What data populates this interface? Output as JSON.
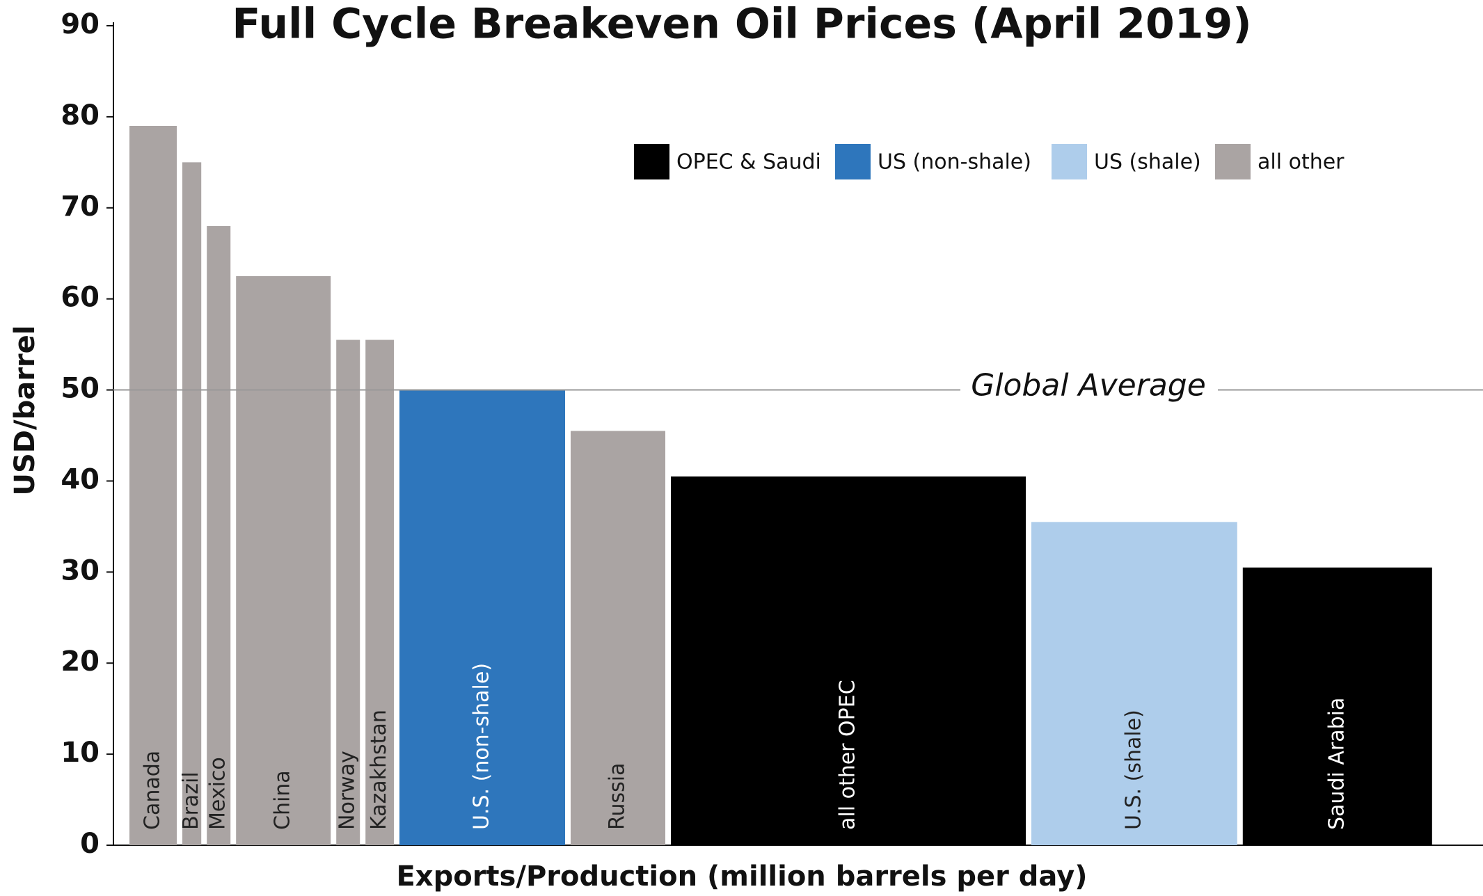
{
  "chart_data": {
    "type": "variable-width-bar",
    "title": "Full Cycle Breakeven Oil Prices (April 2019)",
    "ylabel": "USD/barrel",
    "xlabel": "Exports/Production (million barrels per day)",
    "categories": [
      "Canada",
      "Brazil",
      "Mexico",
      "China",
      "Norway",
      "Kazakhstan",
      "U.S. (non-shale)",
      "Russia",
      "all other OPEC",
      "U.S. (shale)",
      "Saudi Arabia"
    ],
    "values": [
      79,
      75,
      68,
      62.5,
      55.5,
      55.5,
      50,
      45.5,
      40.5,
      35.5,
      30.5
    ],
    "widths": [
      2,
      0.8,
      1,
      4,
      1,
      1.2,
      7,
      4,
      15,
      8.7,
      8
    ],
    "colors": [
      "#aaa4a3",
      "#aaa4a3",
      "#aaa4a3",
      "#aaa4a3",
      "#aaa4a3",
      "#aaa4a3",
      "#2e76bc",
      "#aaa4a3",
      "#000000",
      "#aecdeb",
      "#000000"
    ],
    "legend": [
      {
        "name": "OPEC & Saudi",
        "color": "#000000"
      },
      {
        "name": "US (non-shale)",
        "color": "#2e76bc"
      },
      {
        "name": "US (shale)",
        "color": "#aecdeb"
      },
      {
        "name": "all other",
        "color": "#aaa4a3"
      }
    ],
    "reference": {
      "value": 50,
      "label": "Global Average"
    },
    "ylim": [
      0,
      90
    ],
    "yticks": [
      0,
      10,
      20,
      30,
      40,
      50,
      60,
      70,
      80,
      90
    ]
  }
}
